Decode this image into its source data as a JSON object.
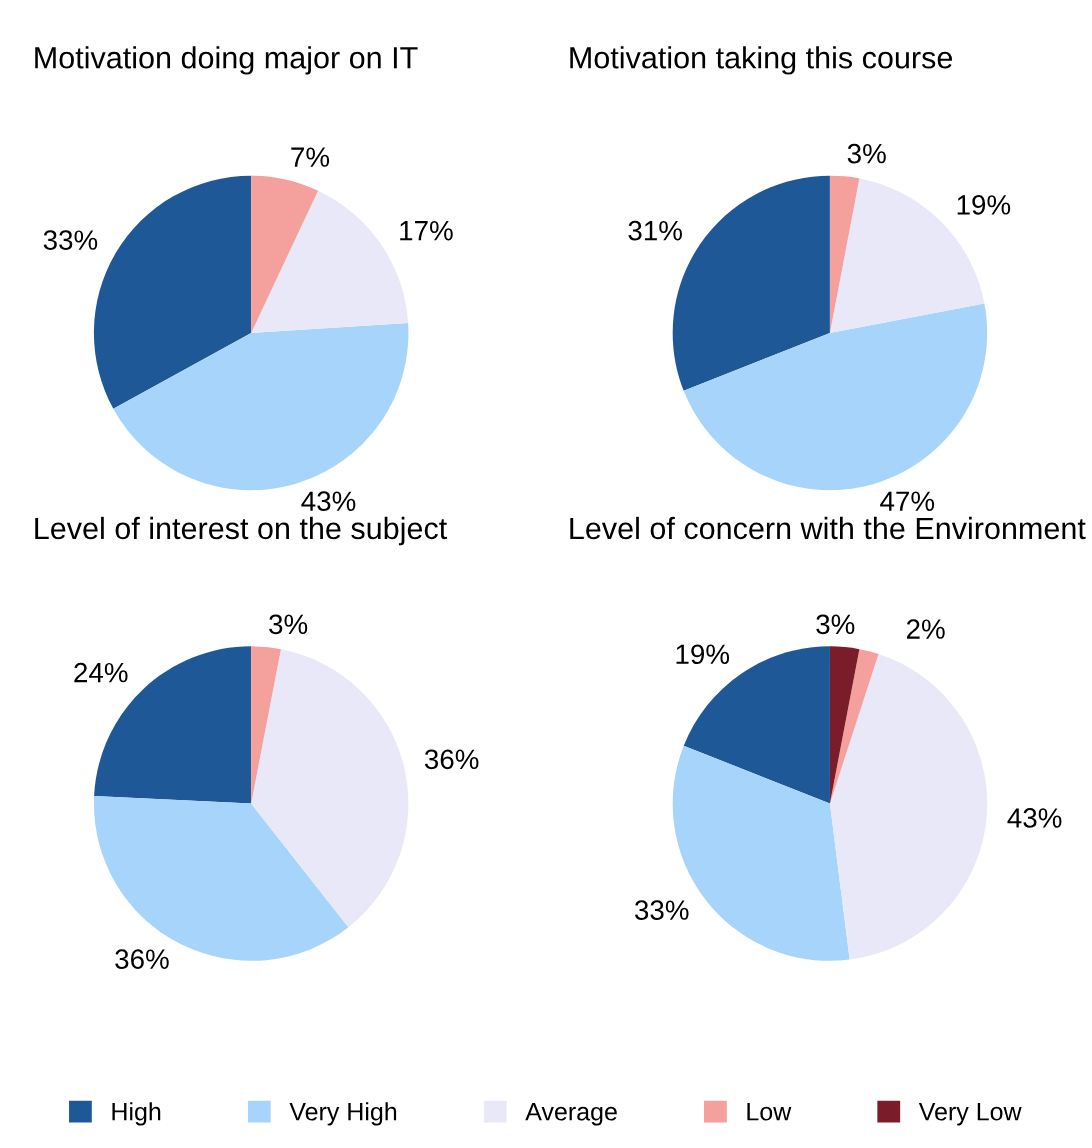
{
  "chart_data": [
    {
      "type": "pie",
      "title": "Motivation doing major on IT",
      "categories": [
        null,
        null,
        null,
        null
      ],
      "values": [
        33,
        43,
        17,
        7
      ],
      "value_labels": [
        "33%",
        "43%",
        "17%",
        "7%"
      ],
      "colors": [
        "#1f5897",
        "#a6d4fa",
        "#e8e8f8",
        "#f4a09c"
      ]
    },
    {
      "type": "pie",
      "title": "Motivation taking this course",
      "categories": [
        null,
        null,
        null,
        null
      ],
      "values": [
        31,
        47,
        19,
        3
      ],
      "value_labels": [
        "31%",
        "47%",
        "19%",
        "3%"
      ],
      "colors": [
        "#1f5897",
        "#a6d4fa",
        "#e8e8f8",
        "#f4a09c"
      ]
    },
    {
      "type": "pie",
      "title": "Level of interest on the subject",
      "categories": [
        null,
        null,
        null,
        null
      ],
      "values": [
        24,
        36,
        36,
        3
      ],
      "value_labels": [
        "24%",
        "36%",
        "36%",
        "3%"
      ],
      "colors": [
        "#1f5897",
        "#a6d4fa",
        "#e8e8f8",
        "#f4a09c"
      ]
    },
    {
      "type": "pie",
      "title": "Level of concern with the Environment",
      "categories": [
        "High",
        "Very High",
        "Average",
        "Low",
        "Very Low"
      ],
      "values": [
        19,
        33,
        43,
        2,
        3
      ],
      "value_labels": [
        "19%",
        "33%",
        "43%",
        "2%",
        "3%"
      ],
      "colors": [
        "#1f5897",
        "#a6d4fa",
        "#e8e8f8",
        "#f4a09c",
        "#7b1c2a"
      ],
      "legend": "bottom"
    }
  ]
}
